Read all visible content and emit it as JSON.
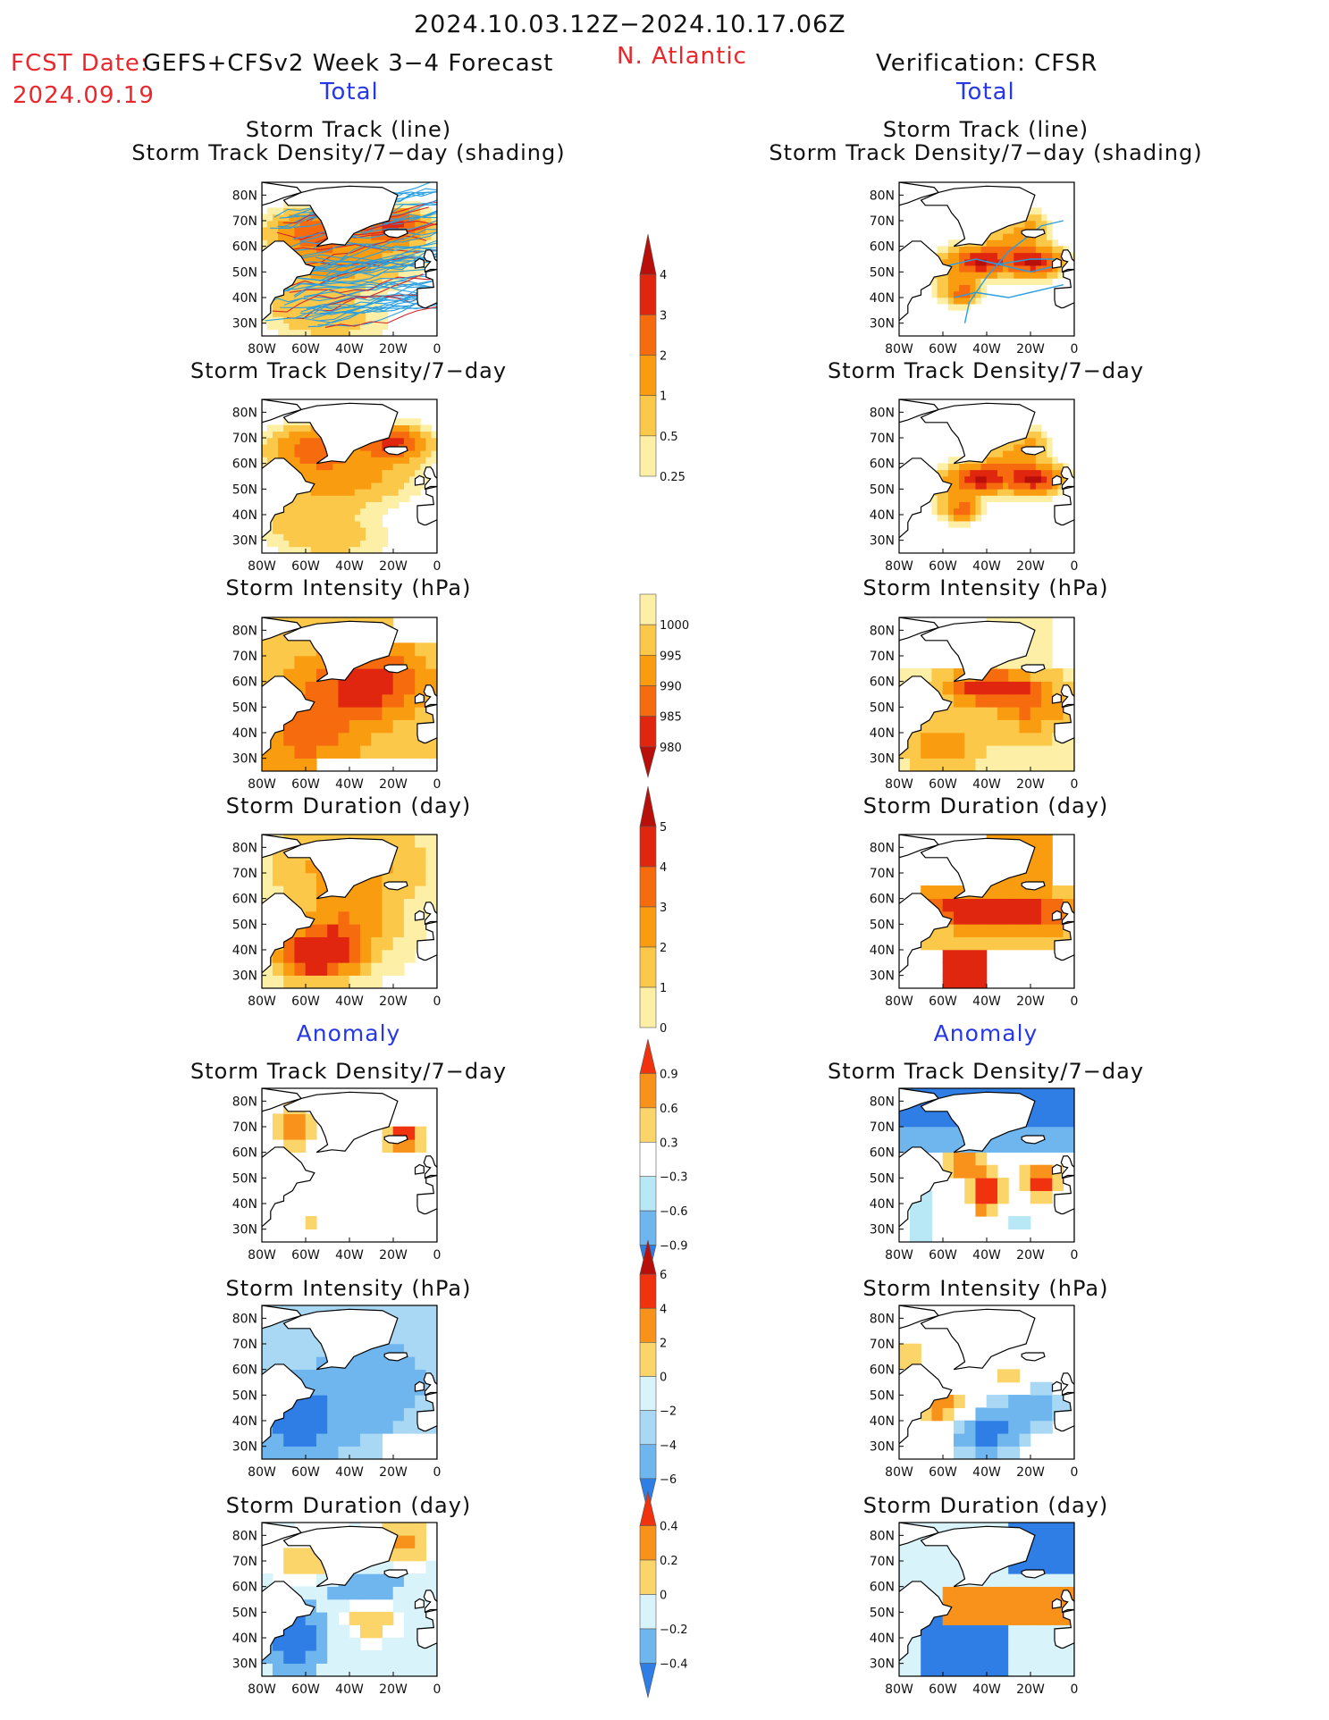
{
  "header": {
    "date_range": "2024.10.03.12Z−2024.10.17.06Z",
    "fcst_date_label": "FCST Date:",
    "fcst_date_value": "2024.09.19",
    "model_label": "GEFS+CFSv2 Week 3−4 Forecast",
    "region": "N. Atlantic",
    "verification": "Verification: CFSR"
  },
  "sections": {
    "total": "Total",
    "anomaly": "Anomaly"
  },
  "panel_titles": {
    "track_line": "Storm Track (line)",
    "track_shading": "Storm Track Density/7−day (shading)",
    "density": "Storm Track Density/7−day",
    "intensity": "Storm Intensity (hPa)",
    "duration": "Storm Duration (day)"
  },
  "axes": {
    "lat_labels": [
      "80N",
      "70N",
      "60N",
      "50N",
      "40N",
      "30N"
    ],
    "lon_labels": [
      "80W",
      "60W",
      "40W",
      "20W",
      "0"
    ]
  },
  "colorbars": {
    "density_total": {
      "labels": [
        "4",
        "3",
        "2",
        "1",
        "0.5",
        "0.25"
      ],
      "colors": [
        "#b80f0a",
        "#e0260e",
        "#f76b0f",
        "#fa9c10",
        "#fbc84a",
        "#fdf0a6"
      ]
    },
    "intensity_total": {
      "labels": [
        "1000",
        "995",
        "990",
        "985",
        "980"
      ],
      "colors": [
        "#fdf0a6",
        "#fbc84a",
        "#fa9c10",
        "#f76b0f",
        "#e0260e",
        "#b80f0a"
      ]
    },
    "duration_total": {
      "labels": [
        "5",
        "4",
        "3",
        "2",
        "1",
        "0"
      ],
      "colors": [
        "#b80f0a",
        "#e0260e",
        "#f76b0f",
        "#fa9c10",
        "#fbc84a",
        "#fdf0a6"
      ]
    },
    "density_anom": {
      "labels": [
        "0.9",
        "0.6",
        "0.3",
        "−0.3",
        "−0.6",
        "−0.9"
      ],
      "colors": [
        "#f0320f",
        "#f9921a",
        "#fbd56a",
        "#ffffff",
        "#b8e8f5",
        "#6fb6ef",
        "#2f7ee5"
      ]
    },
    "intensity_anom": {
      "labels": [
        "6",
        "4",
        "2",
        "0",
        "−2",
        "−4",
        "−6"
      ],
      "colors": [
        "#b80f0a",
        "#f0320f",
        "#f9921a",
        "#fbd56a",
        "#d9f3fb",
        "#a8d8f3",
        "#6fb6ef",
        "#2f7ee5"
      ]
    },
    "duration_anom": {
      "labels": [
        "0.4",
        "0.2",
        "0",
        "−0.2",
        "−0.4"
      ],
      "colors": [
        "#f0320f",
        "#f9921a",
        "#fbd56a",
        "#d9f3fb",
        "#6fb6ef",
        "#2f7ee5"
      ]
    }
  },
  "colors": {
    "dark_red": "#b80f0a",
    "red": "#e0260e",
    "orange_red": "#f76b0f",
    "orange": "#fa9c10",
    "light_orange": "#fbc84a",
    "pale_yellow": "#fdf0a6",
    "anom_red": "#f0320f",
    "light_blue": "#b8e8f5",
    "mid_blue": "#6fb6ef",
    "dark_blue": "#2f7ee5",
    "track_cyan": "#2a9fe0",
    "track_red": "#d4232b"
  }
}
